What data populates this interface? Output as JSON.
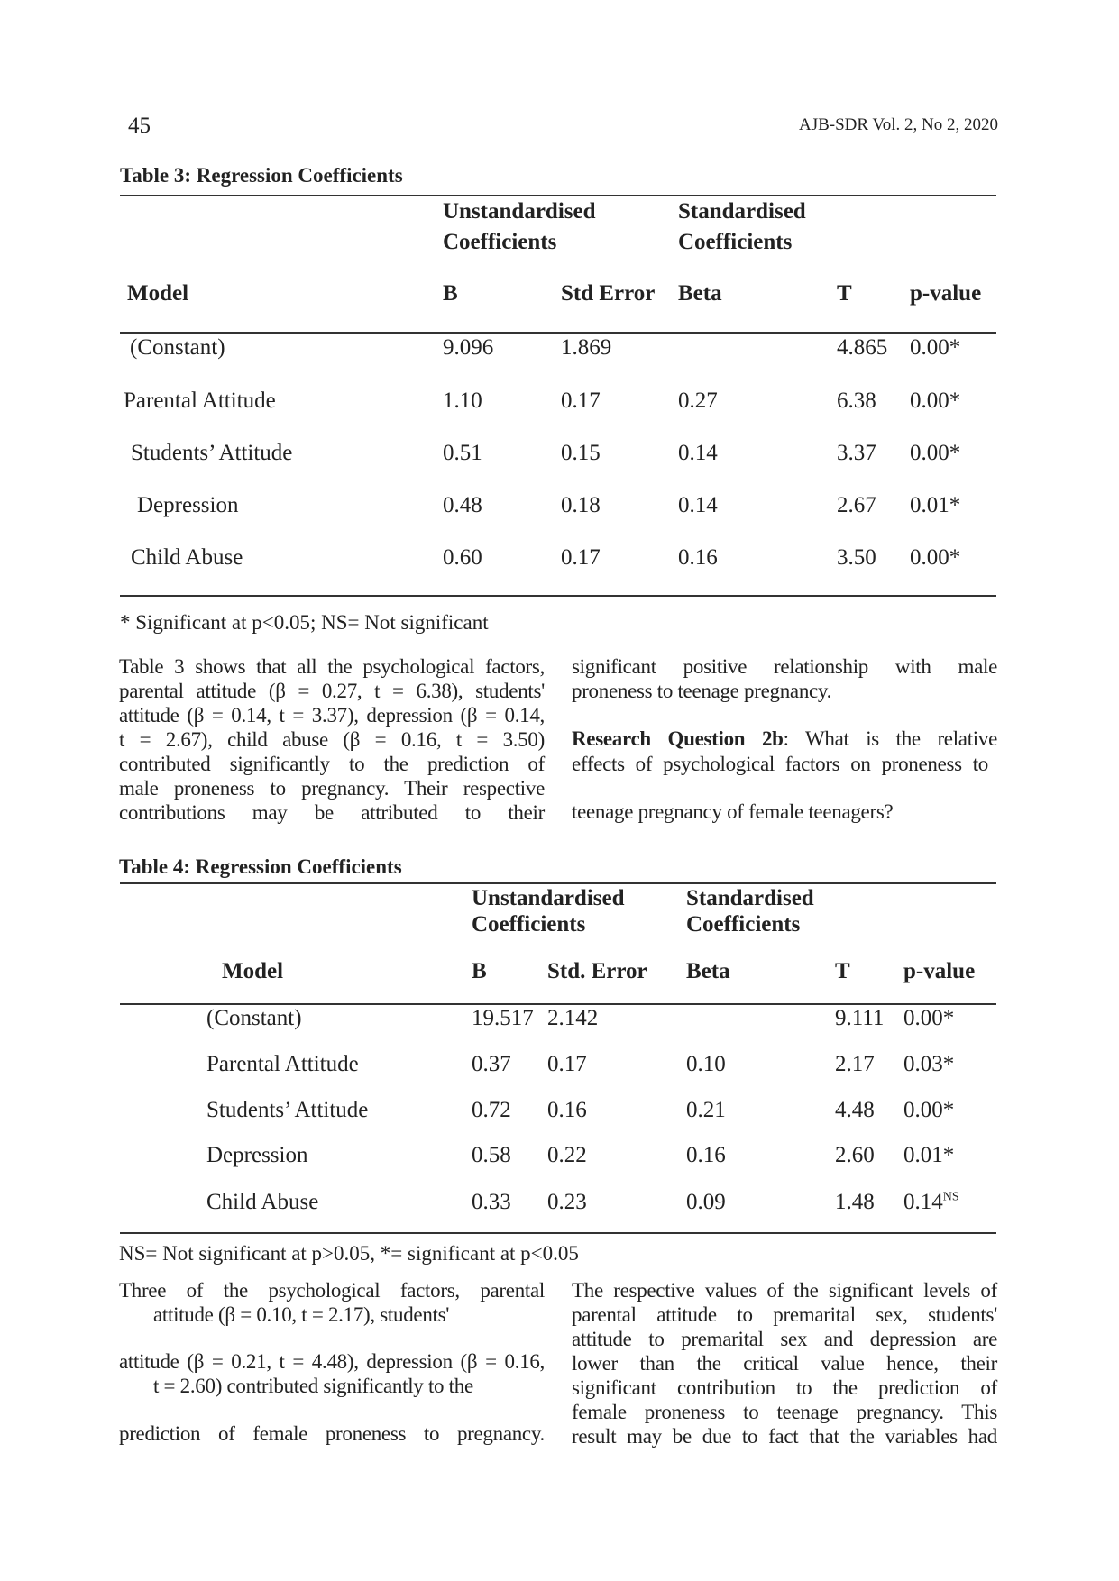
{
  "page_number": "45",
  "running_header": "AJB-SDR Vol. 2, No 2, 2020",
  "table3": {
    "title": "Table 3: Regression Coefficients",
    "group_headers": {
      "unstd_1": "Unstandardised",
      "unstd_2": "Coefficients",
      "std_1": "Standardised",
      "std_2": "Coefficients"
    },
    "columns": [
      "Model",
      "B",
      "Std Error",
      "Beta",
      "T",
      "p-value"
    ],
    "rows": [
      [
        "(Constant)",
        "9.096",
        "1.869",
        "",
        "4.865",
        "0.00*"
      ],
      [
        "Parental Attitude",
        "1.10",
        "0.17",
        "0.27",
        "6.38",
        "0.00*"
      ],
      [
        "Students’ Attitude",
        "0.51",
        "0.15",
        "0.14",
        "3.37",
        "0.00*"
      ],
      [
        "Depression",
        "0.48",
        "0.18",
        "0.14",
        "2.67",
        "0.01*"
      ],
      [
        "Child Abuse",
        "0.60",
        "0.17",
        "0.16",
        "3.50",
        "0.00*"
      ]
    ],
    "footnote": "* Significant at p<0.05; NS= Not significant"
  },
  "para1_left": [
    "Table 3 shows that all the psychological factors,",
    "parental attitude (β = 0.27, t = 6.38), students'",
    "attitude (β = 0.14, t = 3.37), depression (β = 0.14,",
    "t = 2.67), child abuse (β = 0.16, t = 3.50)",
    "contributed significantly to the prediction of",
    "male proneness to pregnancy. Their respective",
    "contributions may be attributed to their"
  ],
  "para1_right": [
    "significant positive relationship with male",
    "proneness to teenage pregnancy."
  ],
  "research_question": {
    "label": "Research Question 2b",
    "line1": ": What is the relative",
    "line2": "effects of psychological factors on proneness to",
    "line3": "teenage pregnancy of female teenagers?"
  },
  "table4": {
    "title": "Table 4: Regression Coefficients",
    "group_headers": {
      "unstd_1": "Unstandardised",
      "unstd_2": "Coefficients",
      "std_1": "Standardised",
      "std_2": "Coefficients"
    },
    "columns": [
      "Model",
      "B",
      "Std. Error",
      "Beta",
      "T",
      "p-value"
    ],
    "rows": [
      [
        "(Constant)",
        "19.517",
        "2.142",
        "",
        "9.111",
        "0.00*"
      ],
      [
        "Parental Attitude",
        "0.37",
        "0.17",
        "0.10",
        "2.17",
        "0.03*"
      ],
      [
        "Students’ Attitude",
        "0.72",
        "0.16",
        "0.21",
        "4.48",
        "0.00*"
      ],
      [
        "Depression",
        "0.58",
        "0.22",
        "0.16",
        "2.60",
        "0.01*"
      ],
      [
        "Child Abuse",
        "0.33",
        "0.23",
        "0.09",
        "1.48",
        "0.14"
      ]
    ],
    "last_p_superscript": "NS",
    "footnote": "NS= Not significant at p>0.05, *= significant at p<0.05"
  },
  "para2_left": [
    "Three of the psychological factors, parental",
    "attitude (β = 0.10, t = 2.17), students'",
    "attitude (β = 0.21, t = 4.48), depression (β = 0.16,",
    "t = 2.60) contributed significantly to the",
    "prediction of female proneness to pregnancy."
  ],
  "para2_right": [
    "The respective values of the significant levels of",
    "parental attitude to premarital sex, students'",
    "attitude to premarital sex and depression are",
    "lower than the critical value hence, their",
    "significant contribution to the prediction of",
    "female proneness to teenage pregnancy. This",
    "result may be due to fact that the variables had"
  ]
}
